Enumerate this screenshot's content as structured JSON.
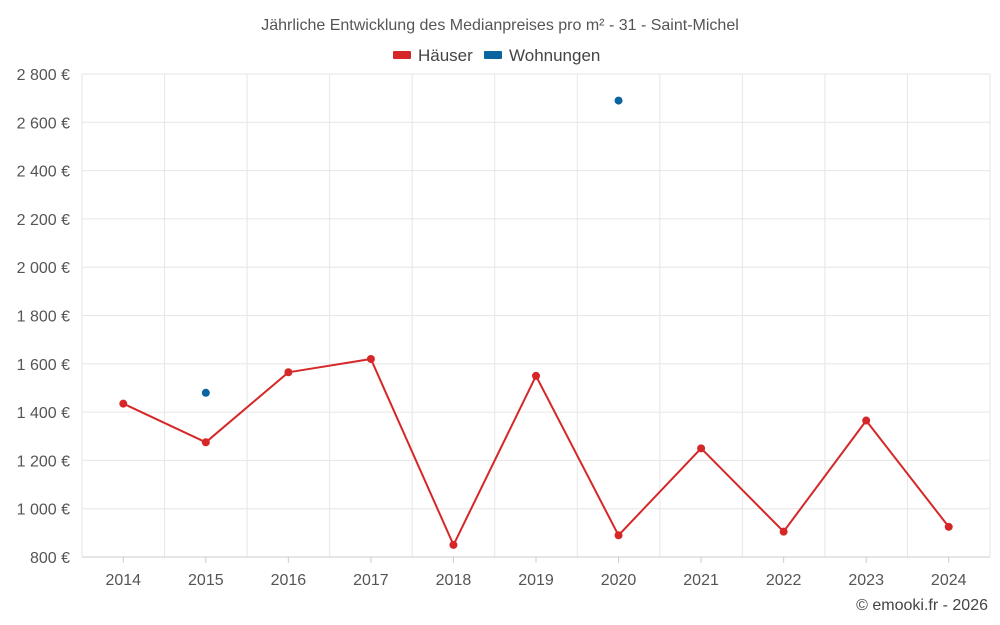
{
  "chart_data": {
    "type": "line",
    "title": "Jährliche Entwicklung des Medianpreises pro m² - 31 - Saint-Michel",
    "credit": "© emooki.fr - 2026",
    "categories": [
      "2014",
      "2015",
      "2016",
      "2017",
      "2018",
      "2019",
      "2020",
      "2021",
      "2022",
      "2023",
      "2024"
    ],
    "y_ticks": [
      800,
      1000,
      1200,
      1400,
      1600,
      1800,
      2000,
      2200,
      2400,
      2600,
      2800
    ],
    "y_tick_labels": [
      "800 €",
      "1 000 €",
      "1 200 €",
      "1 400 €",
      "1 600 €",
      "1 800 €",
      "2 000 €",
      "2 200 €",
      "2 400 €",
      "2 600 €",
      "2 800 €"
    ],
    "ylim": [
      800,
      2800
    ],
    "grid": true,
    "legend_position": "top-center",
    "series": [
      {
        "name": "Häuser",
        "color": "#d62728",
        "values": [
          1435,
          1275,
          1565,
          1620,
          850,
          1550,
          890,
          1250,
          905,
          1365,
          925
        ]
      },
      {
        "name": "Wohnungen",
        "color": "#0a64a0",
        "values": [
          null,
          1480,
          null,
          null,
          null,
          null,
          2690,
          null,
          null,
          null,
          null
        ]
      }
    ]
  }
}
